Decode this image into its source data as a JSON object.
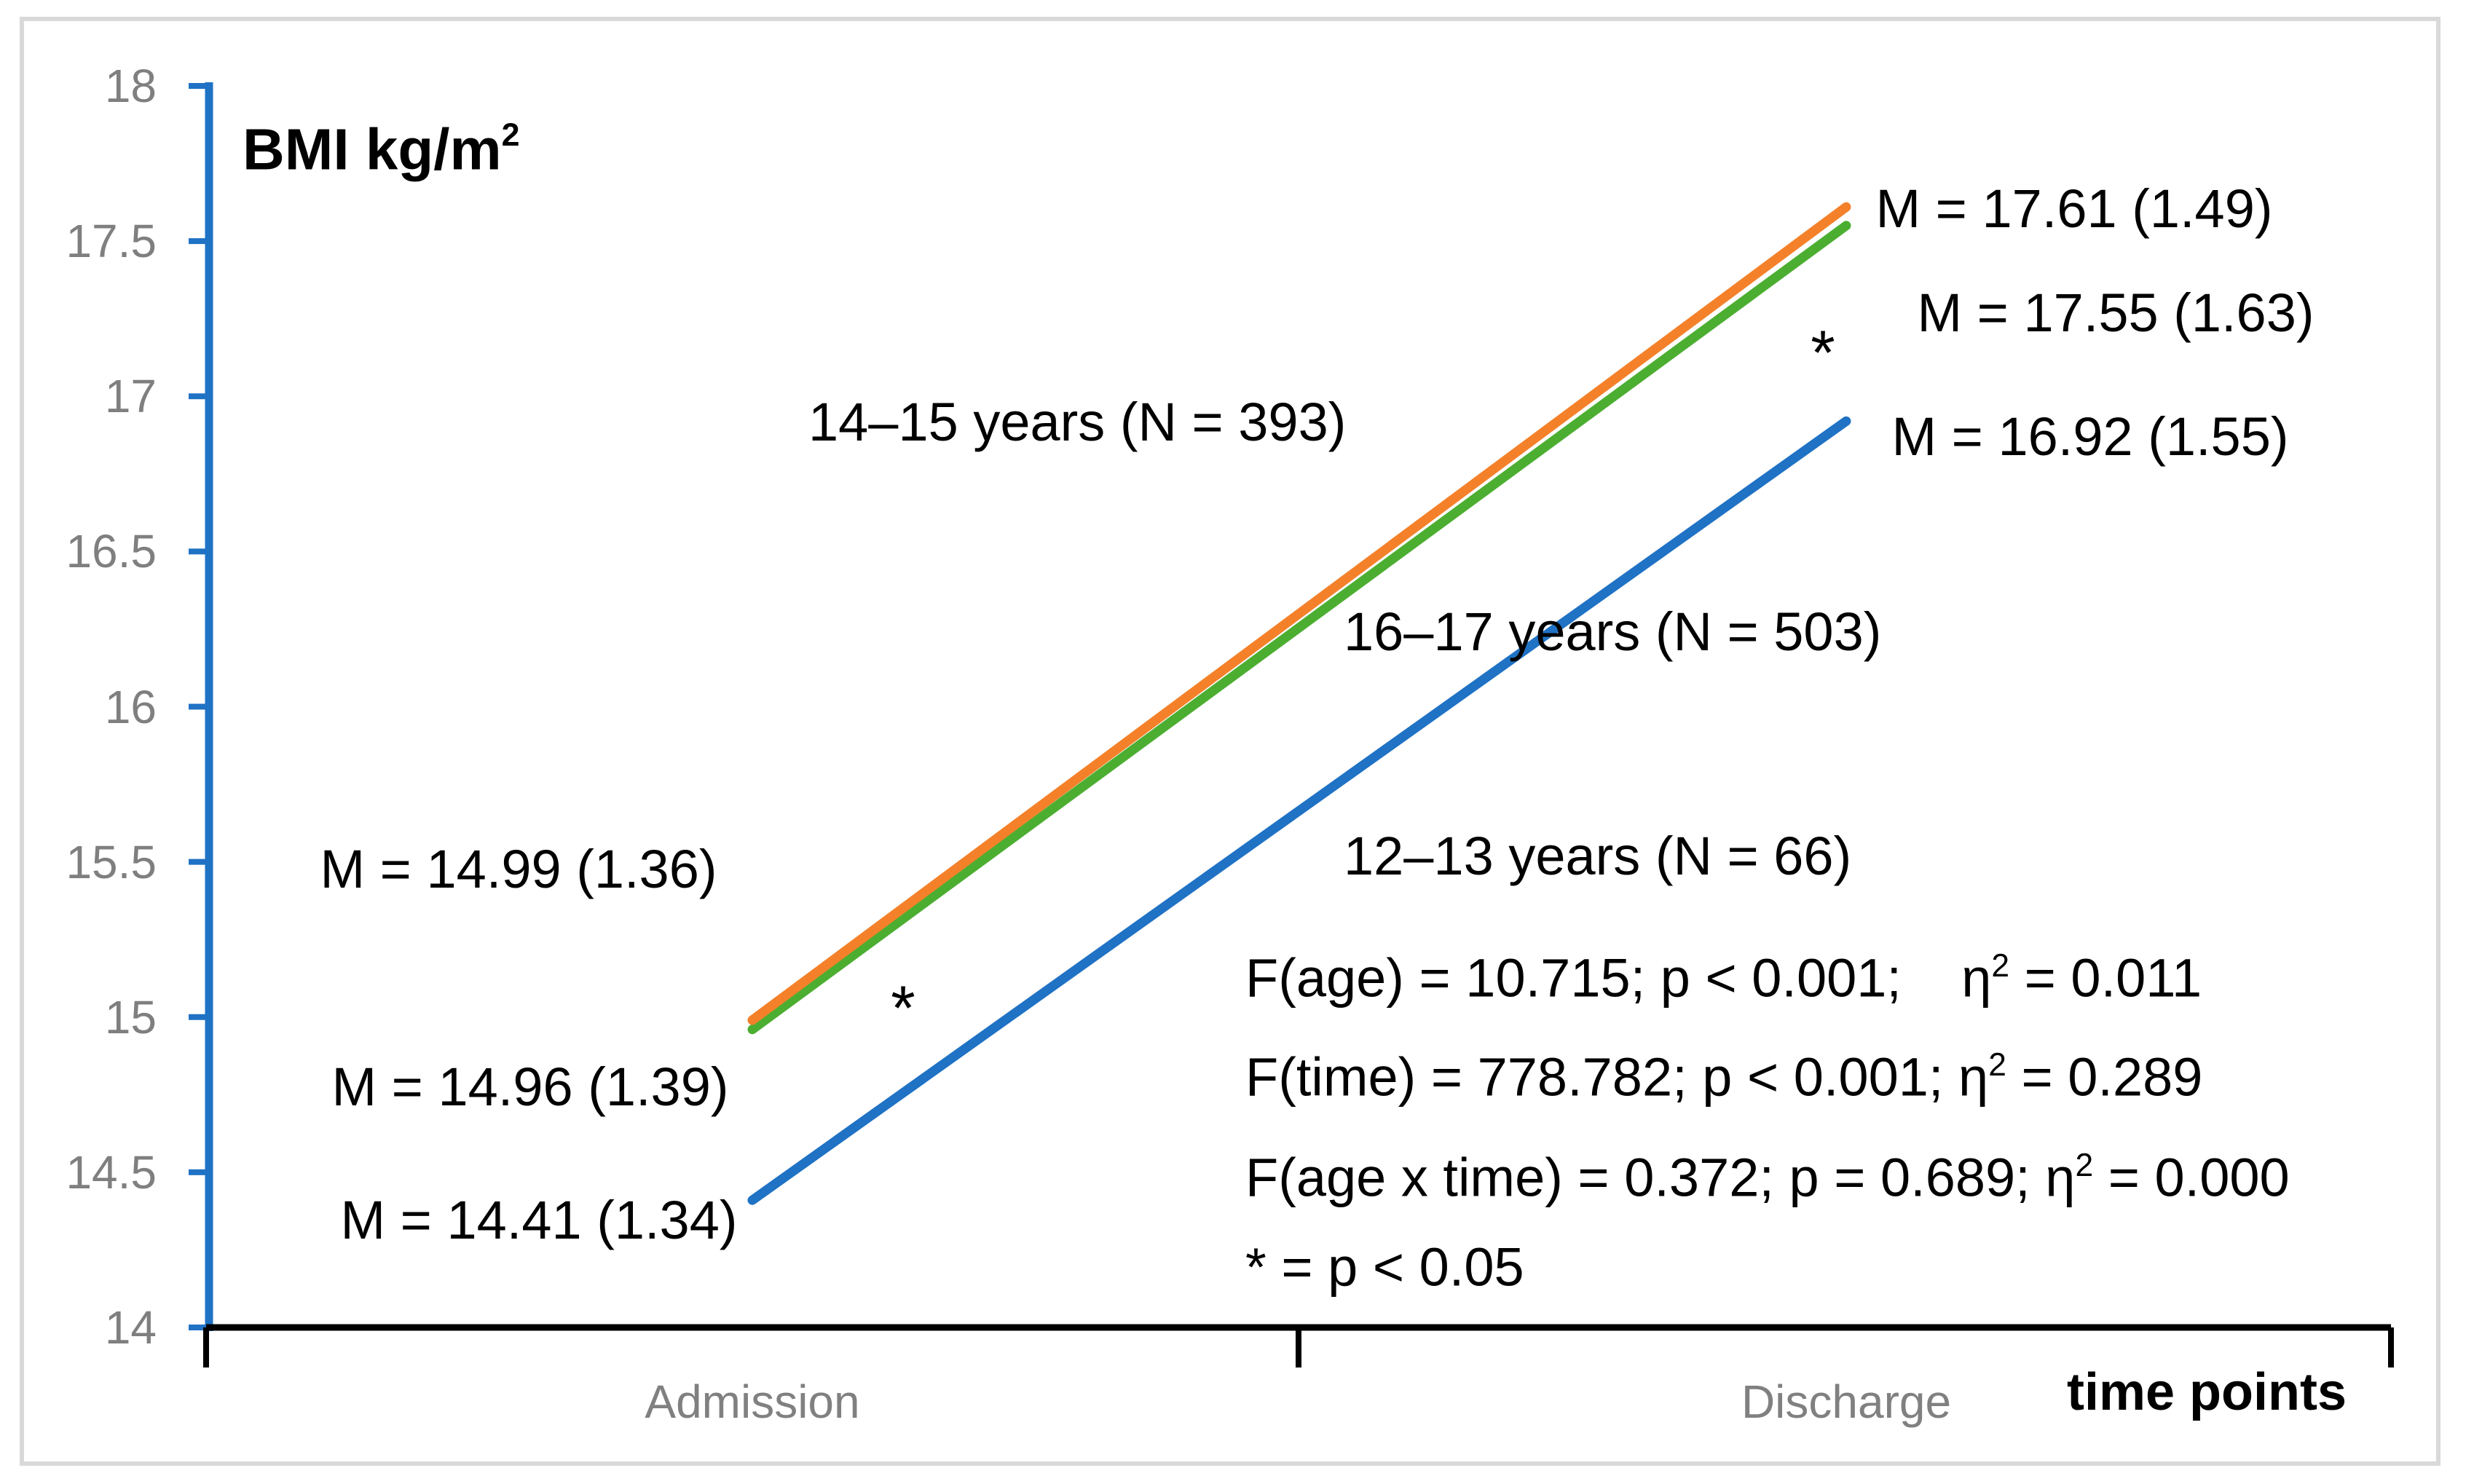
{
  "figure": {
    "title": {
      "text": "BMI kg/m",
      "sup": "2"
    },
    "x_axis": {
      "label": "time points",
      "categories": [
        "Admission",
        "Discharge"
      ]
    },
    "y_axis": {
      "ticks": [
        "18",
        "17.5",
        "17",
        "16.5",
        "16",
        "15.5",
        "15",
        "14.5",
        "14"
      ]
    }
  },
  "series_labels": {
    "age_14_15": "14–15 years (N = 393)",
    "age_16_17": "16–17 years (N = 503)",
    "age_12_13": "12–13 years (N = 66)"
  },
  "point_labels": {
    "admission": [
      "M = 14.99 (1.36)",
      "M = 14.96 (1.39)",
      "M = 14.41 (1.34)"
    ],
    "discharge": [
      "M = 17.61 (1.49)",
      "M = 17.55 (1.63)",
      "M = 16.92 (1.55)"
    ]
  },
  "stars": {
    "admission": "*",
    "discharge": "*"
  },
  "stats": {
    "age": {
      "pre": "F(age) = 10.715; p < 0.001;    η",
      "sup": "2",
      "post": " = 0.011"
    },
    "time": {
      "pre": "F(time) = 778.782; p < 0.001; η",
      "sup": "2",
      "post": " = 0.289"
    },
    "interaction": {
      "pre": "F(age x time) = 0.372; p = 0.689; η",
      "sup": "2",
      "post": " = 0.000"
    },
    "note": {
      "pre": "* = p < 0.05",
      "sup": "",
      "post": ""
    }
  },
  "chart_data": {
    "type": "line",
    "title": "BMI kg/m²",
    "xlabel": "time points",
    "ylabel": "BMI kg/m²",
    "categories": [
      "Admission",
      "Discharge"
    ],
    "series": [
      {
        "id": "age-14-15",
        "name": "14–15 years (N = 393)",
        "color": "#F4812A",
        "values": [
          14.99,
          17.61
        ],
        "sd": [
          1.36,
          1.49
        ]
      },
      {
        "id": "age-16-17",
        "name": "16–17 years (N = 503)",
        "color": "#4CAE31",
        "values": [
          14.96,
          17.55
        ],
        "sd": [
          1.39,
          1.63
        ]
      },
      {
        "id": "age-12-13",
        "name": "12–13 years (N = 66)",
        "color": "#1F72C4",
        "values": [
          14.41,
          16.92
        ],
        "sd": [
          1.34,
          1.55
        ]
      }
    ],
    "ylim": [
      14,
      18
    ],
    "ytick_step": 0.5,
    "grid": false,
    "legend_position": "inline",
    "axis_color_y": "#1F72C4",
    "axis_color_x": "#000000",
    "tick_label_color": "#7F7F7F",
    "annotations": [
      "F(age) = 10.715; p < 0.001; η² = 0.011",
      "F(time) = 778.782; p < 0.001; η² = 0.289",
      "F(age x time) = 0.372; p = 0.689; η² = 0.000",
      "* = p < 0.05"
    ],
    "significance_markers": [
      {
        "at": "Admission",
        "label": "*"
      },
      {
        "at": "Discharge",
        "label": "*"
      }
    ]
  }
}
